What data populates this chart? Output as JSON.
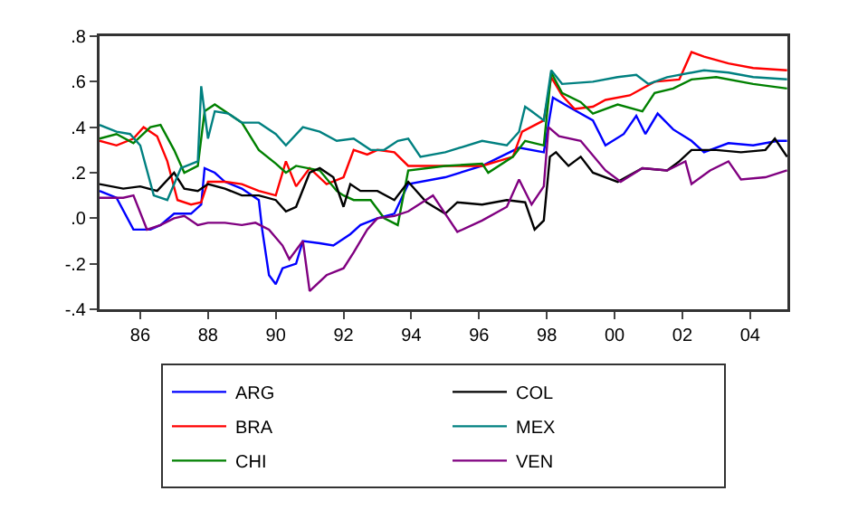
{
  "chart_data": {
    "type": "line",
    "xlim": [
      1984.8,
      2005.1
    ],
    "xticks": [
      {
        "value": 1986,
        "label": "86"
      },
      {
        "value": 1988,
        "label": "88"
      },
      {
        "value": 1990,
        "label": "90"
      },
      {
        "value": 1992,
        "label": "92"
      },
      {
        "value": 1994,
        "label": "94"
      },
      {
        "value": 1996,
        "label": "96"
      },
      {
        "value": 1998,
        "label": "98"
      },
      {
        "value": 2000,
        "label": "00"
      },
      {
        "value": 2002,
        "label": "02"
      },
      {
        "value": 2004,
        "label": "04"
      }
    ],
    "ylim": [
      -0.4,
      0.8
    ],
    "yticks": [
      {
        "value": -0.4,
        "label": "-.4"
      },
      {
        "value": -0.2,
        "label": "-.2"
      },
      {
        "value": 0,
        "label": ".0"
      },
      {
        "value": 0.2,
        "label": ".2"
      },
      {
        "value": 0.4,
        "label": ".4"
      },
      {
        "value": 0.6,
        "label": ".6"
      },
      {
        "value": 0.8,
        "label": ".8"
      }
    ],
    "grid": false,
    "legend": "bottom",
    "marker": "none",
    "line_style": "solid",
    "series": [
      {
        "name": "ARG",
        "color": "#0000ff",
        "x": [
          1984.8,
          1985.3,
          1985.8,
          1986.3,
          1986.6,
          1987,
          1987.5,
          1987.8,
          1987.9,
          1988.2,
          1988.5,
          1989,
          1989.5,
          1989.6,
          1989.8,
          1990,
          1990.2,
          1990.6,
          1990.8,
          1991.3,
          1991.7,
          1992.2,
          1992.5,
          1993,
          1993.5,
          1993.91,
          1995.0,
          1996.09,
          1997.18,
          1997.91,
          1998.18,
          1998.64,
          1999.36,
          1999.73,
          2000.27,
          2000.64,
          2000.91,
          2001.27,
          2001.73,
          2002.27,
          2002.64,
          2003.36,
          2004.09,
          2004.82,
          2005.09
        ],
        "values": [
          0.12,
          0.09,
          -0.05,
          -0.05,
          -0.03,
          0.02,
          0.02,
          0.06,
          0.22,
          0.2,
          0.16,
          0.13,
          0.08,
          -0.05,
          -0.25,
          -0.29,
          -0.22,
          -0.2,
          -0.1,
          -0.11,
          -0.12,
          -0.07,
          -0.03,
          0.0,
          0.02,
          0.15,
          0.18,
          0.23,
          0.31,
          0.29,
          0.53,
          0.49,
          0.43,
          0.32,
          0.37,
          0.45,
          0.37,
          0.46,
          0.39,
          0.34,
          0.29,
          0.33,
          0.32,
          0.34,
          0.34
        ]
      },
      {
        "name": "BRA",
        "color": "#ff0000",
        "x": [
          1984.8,
          1985.3,
          1985.8,
          1986.1,
          1986.5,
          1986.8,
          1987.1,
          1987.5,
          1987.8,
          1988,
          1988.5,
          1989,
          1989.5,
          1990,
          1990.3,
          1990.6,
          1991,
          1991.5,
          1992,
          1992.3,
          1992.7,
          1993,
          1993.5,
          1993.91,
          1995.0,
          1996.09,
          1997.0,
          1997.27,
          1997.91,
          1998.13,
          1998.45,
          1998.82,
          1999.36,
          1999.73,
          2000.45,
          2001.18,
          2001.91,
          2002.27,
          2002.64,
          2003.36,
          2004.09,
          2005.09
        ],
        "values": [
          0.34,
          0.32,
          0.35,
          0.4,
          0.36,
          0.25,
          0.08,
          0.06,
          0.07,
          0.16,
          0.16,
          0.15,
          0.12,
          0.1,
          0.25,
          0.14,
          0.22,
          0.15,
          0.18,
          0.3,
          0.28,
          0.3,
          0.29,
          0.23,
          0.23,
          0.23,
          0.27,
          0.38,
          0.43,
          0.62,
          0.54,
          0.48,
          0.49,
          0.52,
          0.54,
          0.6,
          0.61,
          0.73,
          0.71,
          0.68,
          0.66,
          0.65
        ]
      },
      {
        "name": "CHI",
        "color": "#008000",
        "x": [
          1984.8,
          1985.3,
          1985.8,
          1986.3,
          1986.6,
          1987,
          1987.3,
          1987.7,
          1987.9,
          1988.2,
          1988.6,
          1989,
          1989.5,
          1990,
          1990.3,
          1990.6,
          1991.3,
          1991.8,
          1992,
          1992.3,
          1992.8,
          1993.2,
          1993.6,
          1993.91,
          1995.0,
          1996.09,
          1996.27,
          1997.0,
          1997.36,
          1997.91,
          1998.13,
          1998.45,
          1999.0,
          1999.36,
          2000.09,
          2000.82,
          2001.18,
          2001.73,
          2002.27,
          2003.0,
          2004.09,
          2005.09
        ],
        "values": [
          0.35,
          0.37,
          0.33,
          0.4,
          0.41,
          0.3,
          0.2,
          0.23,
          0.47,
          0.5,
          0.46,
          0.42,
          0.3,
          0.24,
          0.2,
          0.23,
          0.21,
          0.12,
          0.1,
          0.08,
          0.08,
          0.0,
          -0.03,
          0.21,
          0.23,
          0.24,
          0.2,
          0.27,
          0.34,
          0.32,
          0.64,
          0.55,
          0.51,
          0.46,
          0.5,
          0.47,
          0.55,
          0.57,
          0.61,
          0.62,
          0.59,
          0.57
        ]
      },
      {
        "name": "COL",
        "color": "#000000",
        "x": [
          1984.8,
          1985.5,
          1986,
          1986.5,
          1987,
          1987.3,
          1987.7,
          1988,
          1988.5,
          1989,
          1989.5,
          1990,
          1990.3,
          1990.6,
          1991,
          1991.3,
          1991.7,
          1992,
          1992.2,
          1992.5,
          1993,
          1993.5,
          1993.91,
          1994.45,
          1995.0,
          1995.36,
          1996.09,
          1996.82,
          1997.36,
          1997.64,
          1997.91,
          1998.09,
          1998.27,
          1998.64,
          1999.0,
          1999.36,
          2000.09,
          2000.82,
          2001.55,
          2001.91,
          2002.27,
          2003.0,
          2003.73,
          2004.45,
          2004.73,
          2005.09
        ],
        "values": [
          0.15,
          0.13,
          0.14,
          0.12,
          0.2,
          0.13,
          0.12,
          0.15,
          0.13,
          0.1,
          0.1,
          0.08,
          0.03,
          0.05,
          0.2,
          0.22,
          0.18,
          0.05,
          0.15,
          0.12,
          0.12,
          0.08,
          0.16,
          0.07,
          0.02,
          0.07,
          0.06,
          0.08,
          0.07,
          -0.05,
          -0.01,
          0.27,
          0.29,
          0.23,
          0.27,
          0.2,
          0.16,
          0.22,
          0.21,
          0.25,
          0.3,
          0.3,
          0.29,
          0.3,
          0.35,
          0.27
        ]
      },
      {
        "name": "MEX",
        "color": "#008080",
        "x": [
          1984.8,
          1985.3,
          1985.7,
          1986,
          1986.4,
          1986.8,
          1987.2,
          1987.7,
          1987.8,
          1988,
          1988.2,
          1988.6,
          1989,
          1989.5,
          1990,
          1990.3,
          1990.8,
          1991.3,
          1991.8,
          1992.3,
          1992.8,
          1993.2,
          1993.6,
          1993.91,
          1994.27,
          1995.0,
          1996.09,
          1996.82,
          1997.18,
          1997.36,
          1997.55,
          1997.91,
          1998.13,
          1998.45,
          1999.36,
          2000.09,
          2000.64,
          2001.0,
          2001.55,
          2002.64,
          2003.36,
          2004.09,
          2005.09
        ],
        "values": [
          0.41,
          0.38,
          0.37,
          0.32,
          0.1,
          0.08,
          0.22,
          0.25,
          0.58,
          0.35,
          0.47,
          0.46,
          0.42,
          0.42,
          0.37,
          0.32,
          0.4,
          0.38,
          0.34,
          0.35,
          0.3,
          0.3,
          0.34,
          0.35,
          0.27,
          0.29,
          0.34,
          0.32,
          0.38,
          0.49,
          0.47,
          0.43,
          0.65,
          0.59,
          0.6,
          0.62,
          0.63,
          0.59,
          0.62,
          0.65,
          0.64,
          0.62,
          0.61
        ]
      },
      {
        "name": "VEN",
        "color": "#800080",
        "x": [
          1984.8,
          1985.5,
          1985.8,
          1986.2,
          1986.6,
          1987,
          1987.3,
          1987.7,
          1988,
          1988.5,
          1989,
          1989.4,
          1989.8,
          1990.2,
          1990.4,
          1990.8,
          1991.0,
          1991.5,
          1992,
          1992.3,
          1992.7,
          1993,
          1993.5,
          1993.91,
          1994.64,
          1995.36,
          1996.09,
          1996.82,
          1997.18,
          1997.55,
          1997.91,
          1998.05,
          1998.36,
          1999.0,
          1999.73,
          2000.18,
          2000.82,
          2001.55,
          2002.09,
          2002.27,
          2002.82,
          2003.36,
          2003.73,
          2004.45,
          2005.09
        ],
        "values": [
          0.09,
          0.09,
          0.1,
          -0.05,
          -0.03,
          0.0,
          0.01,
          -0.03,
          -0.02,
          -0.02,
          -0.03,
          -0.02,
          -0.05,
          -0.12,
          -0.18,
          -0.1,
          -0.32,
          -0.25,
          -0.22,
          -0.15,
          -0.05,
          0.0,
          0.01,
          0.03,
          0.1,
          -0.06,
          -0.01,
          0.05,
          0.17,
          0.06,
          0.14,
          0.4,
          0.36,
          0.34,
          0.21,
          0.16,
          0.22,
          0.21,
          0.25,
          0.15,
          0.21,
          0.25,
          0.17,
          0.18,
          0.21
        ]
      }
    ]
  }
}
